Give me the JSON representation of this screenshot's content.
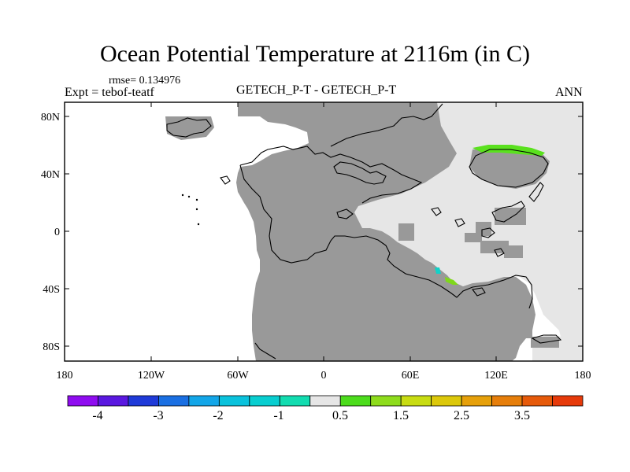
{
  "title": "Ocean Potential Temperature at 2116m (in C)",
  "rmse": "rmse= 0.134976",
  "experiment": "Expt = tebof-teatf",
  "comparison": "GETECH_P-T - GETECH_P-T",
  "season": "ANN",
  "map": {
    "lat_ticks": [
      "80N",
      "40N",
      "0",
      "40S",
      "80S"
    ],
    "lon_ticks": [
      "180",
      "120W",
      "60W",
      "0",
      "60E",
      "120E",
      "180"
    ],
    "colors": {
      "land": "#999999",
      "ocean_zero": "#e6e6e6",
      "missing": "#ffffff",
      "coast": "#000000"
    }
  },
  "colorbar": {
    "colors": [
      "#8f0cf0",
      "#5a18e0",
      "#1f3ad8",
      "#1a6fe2",
      "#13a6e8",
      "#0ac2dc",
      "#08ced0",
      "#12dcb0",
      "#e6e6e6",
      "#4cdc1c",
      "#8edc1c",
      "#c8dc12",
      "#dcc80a",
      "#e6a00a",
      "#e67e0a",
      "#e65a0a",
      "#e63a0a"
    ],
    "labels": [
      "-4",
      "-3",
      "-2",
      "-1",
      "0.5",
      "1.5",
      "2.5",
      "3.5"
    ]
  }
}
